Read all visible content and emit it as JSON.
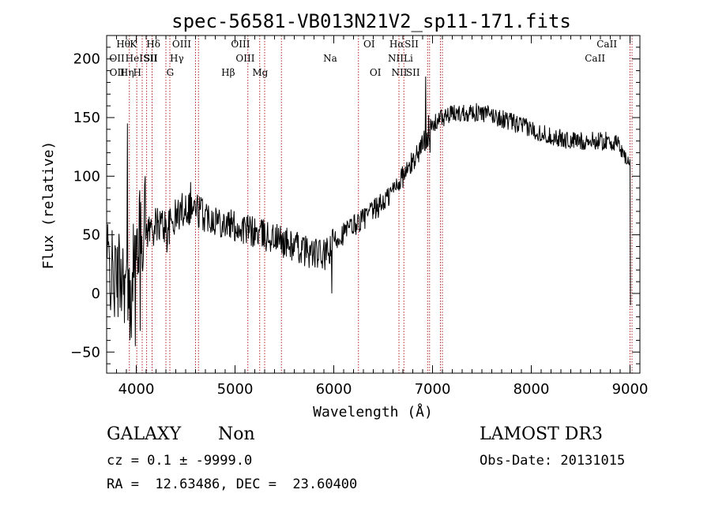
{
  "chart_data": {
    "type": "line",
    "title": "spec-56581-VB013N21V2_sp11-171.fits",
    "xlabel": "Wavelength (Å)",
    "ylabel": "Flux (relative)",
    "xlim": [
      3700,
      9100
    ],
    "ylim": [
      -68,
      220
    ],
    "xticks": [
      4000,
      5000,
      6000,
      7000,
      8000,
      9000
    ],
    "xtick_labels": [
      "4000",
      "5000",
      "6000",
      "7000",
      "8000",
      "9000"
    ],
    "yticks": [
      -50,
      0,
      50,
      100,
      150,
      200
    ],
    "ytick_labels": [
      "−50",
      "0",
      "50",
      "100",
      "150",
      "200"
    ],
    "spectrum_knots": [
      [
        3700,
        30
      ],
      [
        3780,
        10
      ],
      [
        3860,
        20
      ],
      [
        3900,
        5
      ],
      [
        3940,
        -15
      ],
      [
        3980,
        40
      ],
      [
        4050,
        55
      ],
      [
        4150,
        55
      ],
      [
        4250,
        60
      ],
      [
        4320,
        55
      ],
      [
        4400,
        65
      ],
      [
        4500,
        75
      ],
      [
        4600,
        72
      ],
      [
        4700,
        67
      ],
      [
        4850,
        62
      ],
      [
        5000,
        57
      ],
      [
        5200,
        52
      ],
      [
        5400,
        47
      ],
      [
        5600,
        40
      ],
      [
        5800,
        34
      ],
      [
        5900,
        32
      ],
      [
        5960,
        35
      ],
      [
        6000,
        45
      ],
      [
        6200,
        58
      ],
      [
        6400,
        70
      ],
      [
        6550,
        82
      ],
      [
        6650,
        95
      ],
      [
        6750,
        105
      ],
      [
        6850,
        120
      ],
      [
        6950,
        135
      ],
      [
        7050,
        148
      ],
      [
        7200,
        153
      ],
      [
        7400,
        155
      ],
      [
        7600,
        152
      ],
      [
        7800,
        146
      ],
      [
        8000,
        140
      ],
      [
        8200,
        134
      ],
      [
        8400,
        130
      ],
      [
        8600,
        130
      ],
      [
        8800,
        130
      ],
      [
        8900,
        125
      ],
      [
        8960,
        115
      ],
      [
        9000,
        110
      ]
    ],
    "spectrum_spikes": [
      [
        3910,
        145
      ],
      [
        3960,
        18
      ],
      [
        3990,
        -45
      ],
      [
        4000,
        28
      ],
      [
        4040,
        -32
      ],
      [
        4090,
        100
      ],
      [
        4310,
        35
      ],
      [
        4550,
        95
      ],
      [
        5980,
        0
      ],
      [
        6930,
        185
      ],
      [
        6960,
        152
      ],
      [
        6975,
        120
      ],
      [
        9010,
        -10
      ]
    ],
    "lines": [
      {
        "name": "OII",
        "wavelength": 3727,
        "row": 2
      },
      {
        "name": "OII",
        "wavelength": 3729,
        "row": 3
      },
      {
        "name": "Hθ",
        "wavelength": 3798,
        "row": 1
      },
      {
        "name": "HeI",
        "wavelength": 3889,
        "row": 2
      },
      {
        "name": "Hη",
        "wavelength": 3835,
        "row": 3
      },
      {
        "name": "K",
        "wavelength": 3934,
        "row": 1
      },
      {
        "name": "SII",
        "wavelength": 4070,
        "row": 2
      },
      {
        "name": "H",
        "wavelength": 3968,
        "row": 3
      },
      {
        "name": "Hδ",
        "wavelength": 4102,
        "row": 1
      },
      {
        "name": "SII",
        "wavelength": 4076,
        "row": 2
      },
      {
        "name": "OIII",
        "wavelength": 4363,
        "row": 1
      },
      {
        "name": "Hγ",
        "wavelength": 4340,
        "row": 2
      },
      {
        "name": "G",
        "wavelength": 4305,
        "row": 3
      },
      {
        "name": "OIII",
        "wavelength": 4959,
        "row": 1
      },
      {
        "name": "OIII",
        "wavelength": 5007,
        "row": 2
      },
      {
        "name": "Hβ",
        "wavelength": 4861,
        "row": 3
      },
      {
        "name": "Mg",
        "wavelength": 5175,
        "row": 3
      },
      {
        "name": "Na",
        "wavelength": 5893,
        "row": 2
      },
      {
        "name": "OI",
        "wavelength": 6300,
        "row": 1
      },
      {
        "name": "OI",
        "wavelength": 6363,
        "row": 3
      },
      {
        "name": "Hα",
        "wavelength": 6563,
        "row": 1
      },
      {
        "name": "NII",
        "wavelength": 6548,
        "row": 2
      },
      {
        "name": "NII",
        "wavelength": 6584,
        "row": 3
      },
      {
        "name": "SII",
        "wavelength": 6717,
        "row": 1
      },
      {
        "name": "Li",
        "wavelength": 6708,
        "row": 2
      },
      {
        "name": "SII",
        "wavelength": 6731,
        "row": 3
      },
      {
        "name": "CaII",
        "wavelength": 8662,
        "row": 1
      },
      {
        "name": "CaII",
        "wavelength": 8542,
        "row": 2
      }
    ],
    "line_markers_x": [
      3930,
      4005,
      4060,
      4105,
      4160,
      4300,
      4340,
      4600,
      4630,
      5130,
      5250,
      5300,
      5470,
      6250,
      6660,
      6710,
      6950,
      6970,
      7080,
      7100,
      9000,
      9020
    ]
  },
  "info": {
    "object_class": "GALAXY",
    "subclass": "Non",
    "survey": "LAMOST DR3",
    "cz_text": "cz = 0.1 ± -9999.0",
    "obs_date_text": "Obs-Date: 20131015",
    "coords_text": "RA =  12.63486, DEC =  23.60400"
  },
  "colors": {
    "spectrum": "#000000",
    "line_marker": "#b22222",
    "axes": "#000000"
  }
}
